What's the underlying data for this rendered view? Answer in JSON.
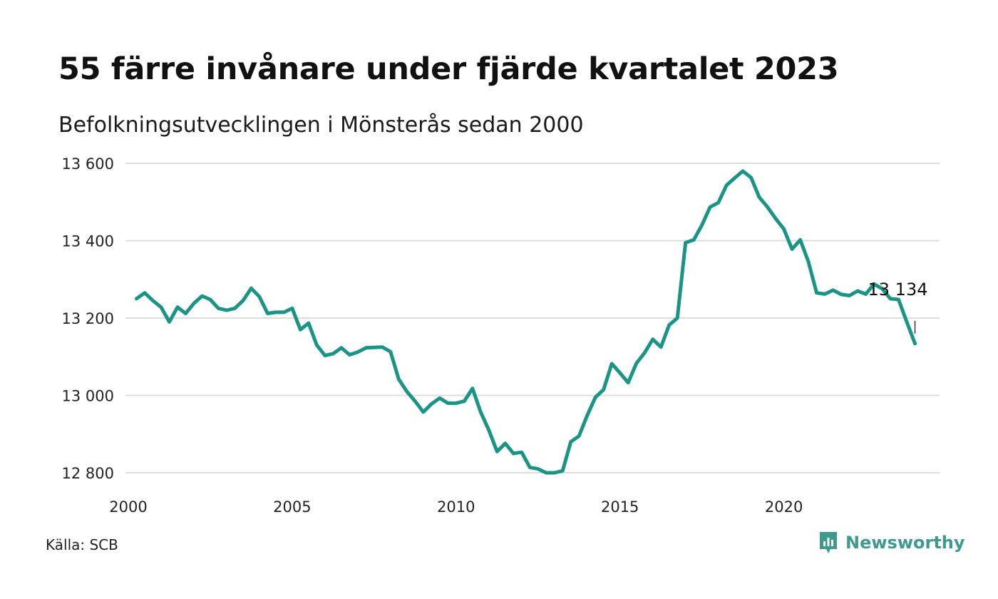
{
  "header": {
    "title": "55 färre invånare under fjärde kvartalet 2023",
    "subtitle": "Befolkningsutvecklingen i Mönsterås sedan 2000"
  },
  "footer": {
    "source": "Källa: SCB",
    "brand": "Newsworthy"
  },
  "colors": {
    "line": "#1a9485",
    "grid": "#dddddd",
    "brand": "#3e9a8c"
  },
  "chart_data": {
    "type": "line",
    "title": "55 färre invånare under fjärde kvartalet 2023",
    "subtitle": "Befolkningsutvecklingen i Mönsterås sedan 2000",
    "xlabel": "",
    "ylabel": "",
    "xlim": [
      2000,
      2024.75
    ],
    "ylim": [
      12790,
      13620
    ],
    "x_ticks": [
      2000,
      2005,
      2010,
      2015,
      2020
    ],
    "x_tick_labels": [
      "2000",
      "2005",
      "2010",
      "2015",
      "2020"
    ],
    "y_ticks": [
      12800,
      13000,
      13200,
      13400,
      13600
    ],
    "y_tick_labels": [
      "12 800",
      "13 000",
      "13 200",
      "13 400",
      "13 600"
    ],
    "grid": "horizontal",
    "end_label": "13 134",
    "series": [
      {
        "x_start": 2000.25,
        "x_step": 0.25,
        "values": [
          13250,
          13265,
          13245,
          13228,
          13190,
          13228,
          13212,
          13238,
          13257,
          13248,
          13225,
          13220,
          13225,
          13245,
          13277,
          13255,
          13212,
          13215,
          13215,
          13225,
          13170,
          13187,
          13130,
          13103,
          13108,
          13123,
          13105,
          13112,
          13123,
          13124,
          13125,
          13113,
          13042,
          13010,
          12985,
          12957,
          12978,
          12993,
          12980,
          12980,
          12985,
          13018,
          12957,
          12910,
          12855,
          12876,
          12850,
          12853,
          12814,
          12810,
          12800,
          12800,
          12805,
          12880,
          12895,
          12948,
          12995,
          13015,
          13082,
          13058,
          13033,
          13083,
          13110,
          13145,
          13125,
          13182,
          13200,
          13395,
          13402,
          13440,
          13487,
          13498,
          13543,
          13562,
          13580,
          13563,
          13512,
          13487,
          13457,
          13430,
          13378,
          13402,
          13345,
          13265,
          13262,
          13272,
          13261,
          13258,
          13270,
          13262,
          13288,
          13276,
          13250,
          13248,
          13190,
          13134
        ]
      }
    ]
  }
}
